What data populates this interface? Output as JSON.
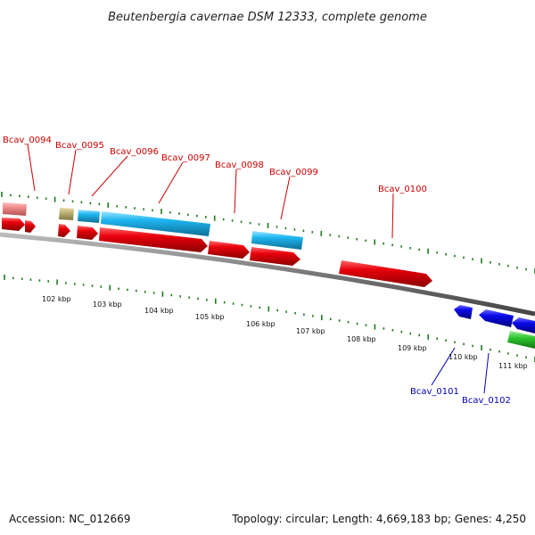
{
  "title": "Beutenbergia cavernae DSM 12333, complete genome",
  "footer": {
    "accession": "Accession: NC_012669",
    "summary": "Topology: circular; Length: 4,669,183 bp; Genes: 4,250"
  },
  "colors": {
    "forward_label": "#cc0000",
    "reverse_label": "#0000bb",
    "cds_red": "#e8000b",
    "cds_blue": "#0a0ae8",
    "cds_cyan": "#1fb6f0",
    "pink": "#f08a8a",
    "olive": "#bdb273",
    "green": "#2dc52d",
    "backbone": "#777777",
    "ticks": "#1f7a1f"
  },
  "ruler_labels": [
    "102 kbp",
    "103 kbp",
    "104 kbp",
    "105 kbp",
    "106 kbp",
    "107 kbp",
    "108 kbp",
    "109 kbp",
    "110 kbp",
    "111 kbp"
  ],
  "gene_labels_forward": [
    "Bcav_0094",
    "Bcav_0095",
    "Bcav_0096",
    "Bcav_0097",
    "Bcav_0098",
    "Bcav_0099",
    "Bcav_0100"
  ],
  "gene_labels_reverse": [
    "Bcav_0101",
    "Bcav_0102"
  ]
}
